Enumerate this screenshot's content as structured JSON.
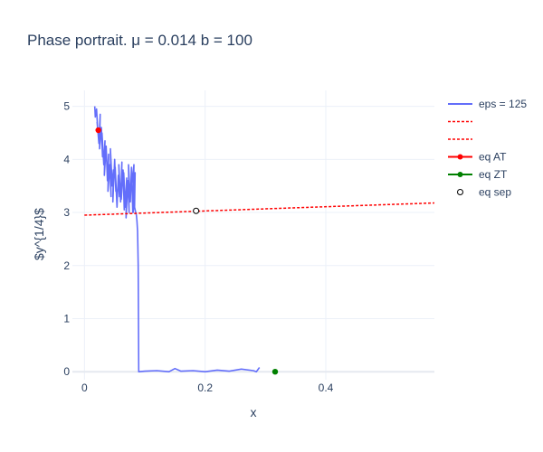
{
  "chart_data": {
    "type": "line",
    "title": "Phase portrait. μ = 0.014 b = 100",
    "xlabel": "x",
    "ylabel": "$y^{1/4}$",
    "xlim": [
      -0.02,
      0.58
    ],
    "ylim": [
      -0.15,
      5.3
    ],
    "x_ticks": [
      0,
      0.2,
      0.4
    ],
    "x_tick_labels": [
      "0",
      "0.2",
      "0.4"
    ],
    "y_ticks": [
      0,
      1,
      2,
      3,
      4,
      5
    ],
    "y_tick_labels": [
      "0",
      "1",
      "2",
      "3",
      "4",
      "5"
    ],
    "grid": true,
    "legend_position": "right",
    "colors": {
      "trajectory": "#636efa",
      "red": "#ff0000",
      "green": "#008000",
      "text": "#2a3f5f",
      "grid": "#ebf0f8"
    },
    "series": [
      {
        "name": "eps = 125",
        "kind": "line",
        "color": "#636efa",
        "x": [
          0.017,
          0.018,
          0.02,
          0.022,
          0.021,
          0.024,
          0.026,
          0.025,
          0.028,
          0.03,
          0.029,
          0.032,
          0.034,
          0.033,
          0.036,
          0.038,
          0.04,
          0.039,
          0.042,
          0.044,
          0.043,
          0.046,
          0.048,
          0.047,
          0.05,
          0.052,
          0.051,
          0.054,
          0.056,
          0.058,
          0.057,
          0.06,
          0.062,
          0.061,
          0.064,
          0.066,
          0.065,
          0.068,
          0.07,
          0.069,
          0.072,
          0.074,
          0.073,
          0.076,
          0.078,
          0.08,
          0.079,
          0.082,
          0.081,
          0.084,
          0.083,
          0.085,
          0.086,
          0.087,
          0.088,
          0.0885,
          0.089,
          0.0895,
          0.09,
          0.1,
          0.12,
          0.14,
          0.15,
          0.16,
          0.18,
          0.2,
          0.22,
          0.24,
          0.26,
          0.28,
          0.285,
          0.29
        ],
        "y": [
          5.0,
          4.8,
          4.95,
          4.55,
          4.7,
          4.3,
          4.85,
          4.2,
          4.6,
          4.05,
          4.5,
          3.9,
          4.35,
          3.7,
          4.25,
          3.6,
          4.1,
          3.4,
          3.9,
          3.3,
          4.2,
          3.5,
          3.8,
          3.2,
          4.0,
          3.4,
          3.85,
          3.1,
          3.7,
          3.3,
          3.9,
          3.2,
          3.95,
          3.25,
          3.8,
          3.05,
          3.75,
          3.1,
          3.65,
          2.9,
          3.6,
          3.0,
          3.9,
          3.2,
          3.85,
          3.0,
          3.55,
          3.9,
          3.0,
          3.75,
          3.1,
          3.0,
          2.95,
          2.85,
          2.65,
          2.4,
          2.0,
          1.0,
          0.0,
          0.01,
          0.02,
          0.0,
          0.06,
          0.01,
          0.02,
          0.0,
          0.03,
          0.01,
          0.05,
          0.02,
          0.0,
          0.08
        ]
      },
      {
        "name": "",
        "kind": "dotted",
        "color": "#ff0000",
        "x": [
          0.0,
          0.58
        ],
        "y": [
          2.95,
          3.18
        ]
      },
      {
        "name": "",
        "kind": "dotted",
        "color": "#ff0000",
        "x": [],
        "y": []
      },
      {
        "name": "eq AT",
        "kind": "marker",
        "color": "#ff0000",
        "x": [
          0.023
        ],
        "y": [
          4.55
        ]
      },
      {
        "name": "eq ZT",
        "kind": "marker",
        "color": "#008000",
        "x": [
          0.316
        ],
        "y": [
          0.0
        ]
      },
      {
        "name": "eq sep",
        "kind": "open-marker",
        "color": "#000000",
        "x": [
          0.185
        ],
        "y": [
          3.03
        ]
      }
    ]
  }
}
